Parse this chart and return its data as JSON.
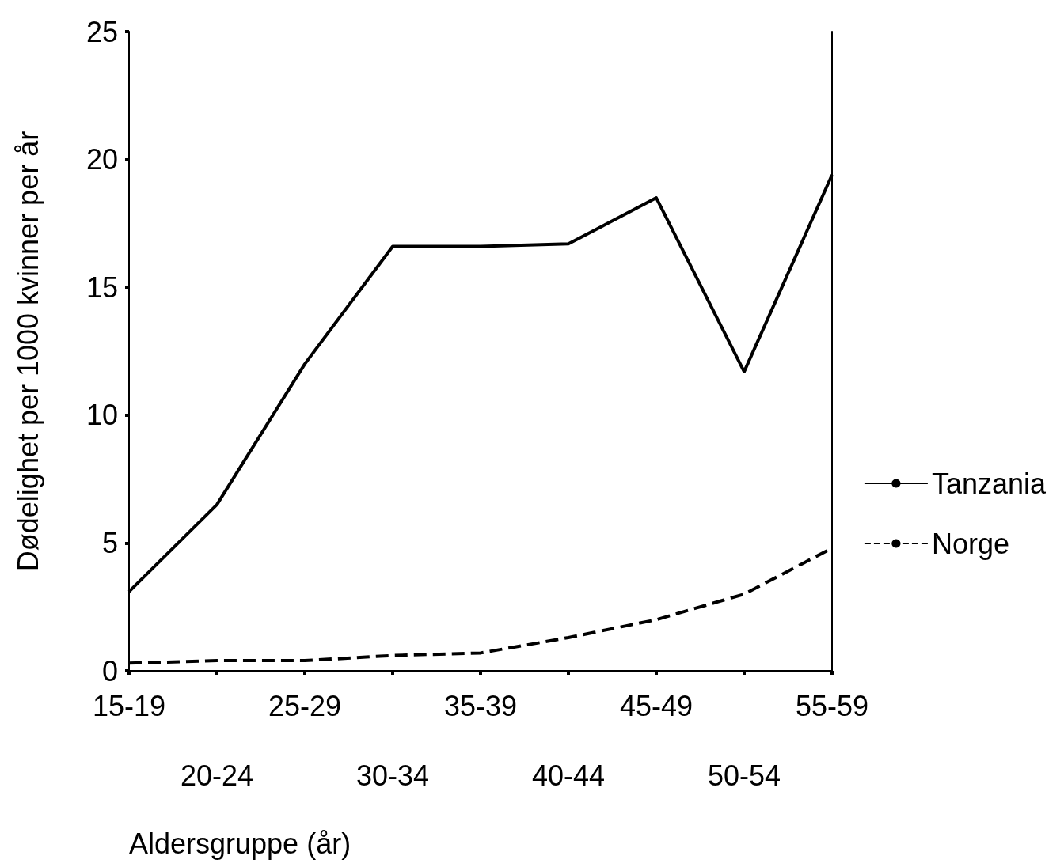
{
  "chart_data": {
    "type": "line",
    "xlabel": "Aldersgruppe (år)",
    "ylabel": "Dødelighet per 1000 kvinner per år",
    "categories": [
      "15-19",
      "20-24",
      "25-29",
      "30-34",
      "35-39",
      "40-44",
      "45-49",
      "50-54",
      "55-59"
    ],
    "series": [
      {
        "name": "Tanzania",
        "color": "#000000",
        "line_style": "solid",
        "values": [
          3.1,
          6.5,
          12.0,
          16.6,
          16.6,
          16.7,
          18.5,
          11.7,
          19.4
        ]
      },
      {
        "name": "Norge",
        "color": "#000000",
        "line_style": "dashed",
        "values": [
          0.3,
          0.4,
          0.4,
          0.6,
          0.7,
          1.3,
          2.0,
          3.0,
          4.8
        ]
      }
    ],
    "ylim": [
      0,
      25
    ],
    "yticks": [
      0,
      5,
      10,
      15,
      20,
      25
    ],
    "grid": false,
    "legend": "right",
    "marker": "none"
  }
}
